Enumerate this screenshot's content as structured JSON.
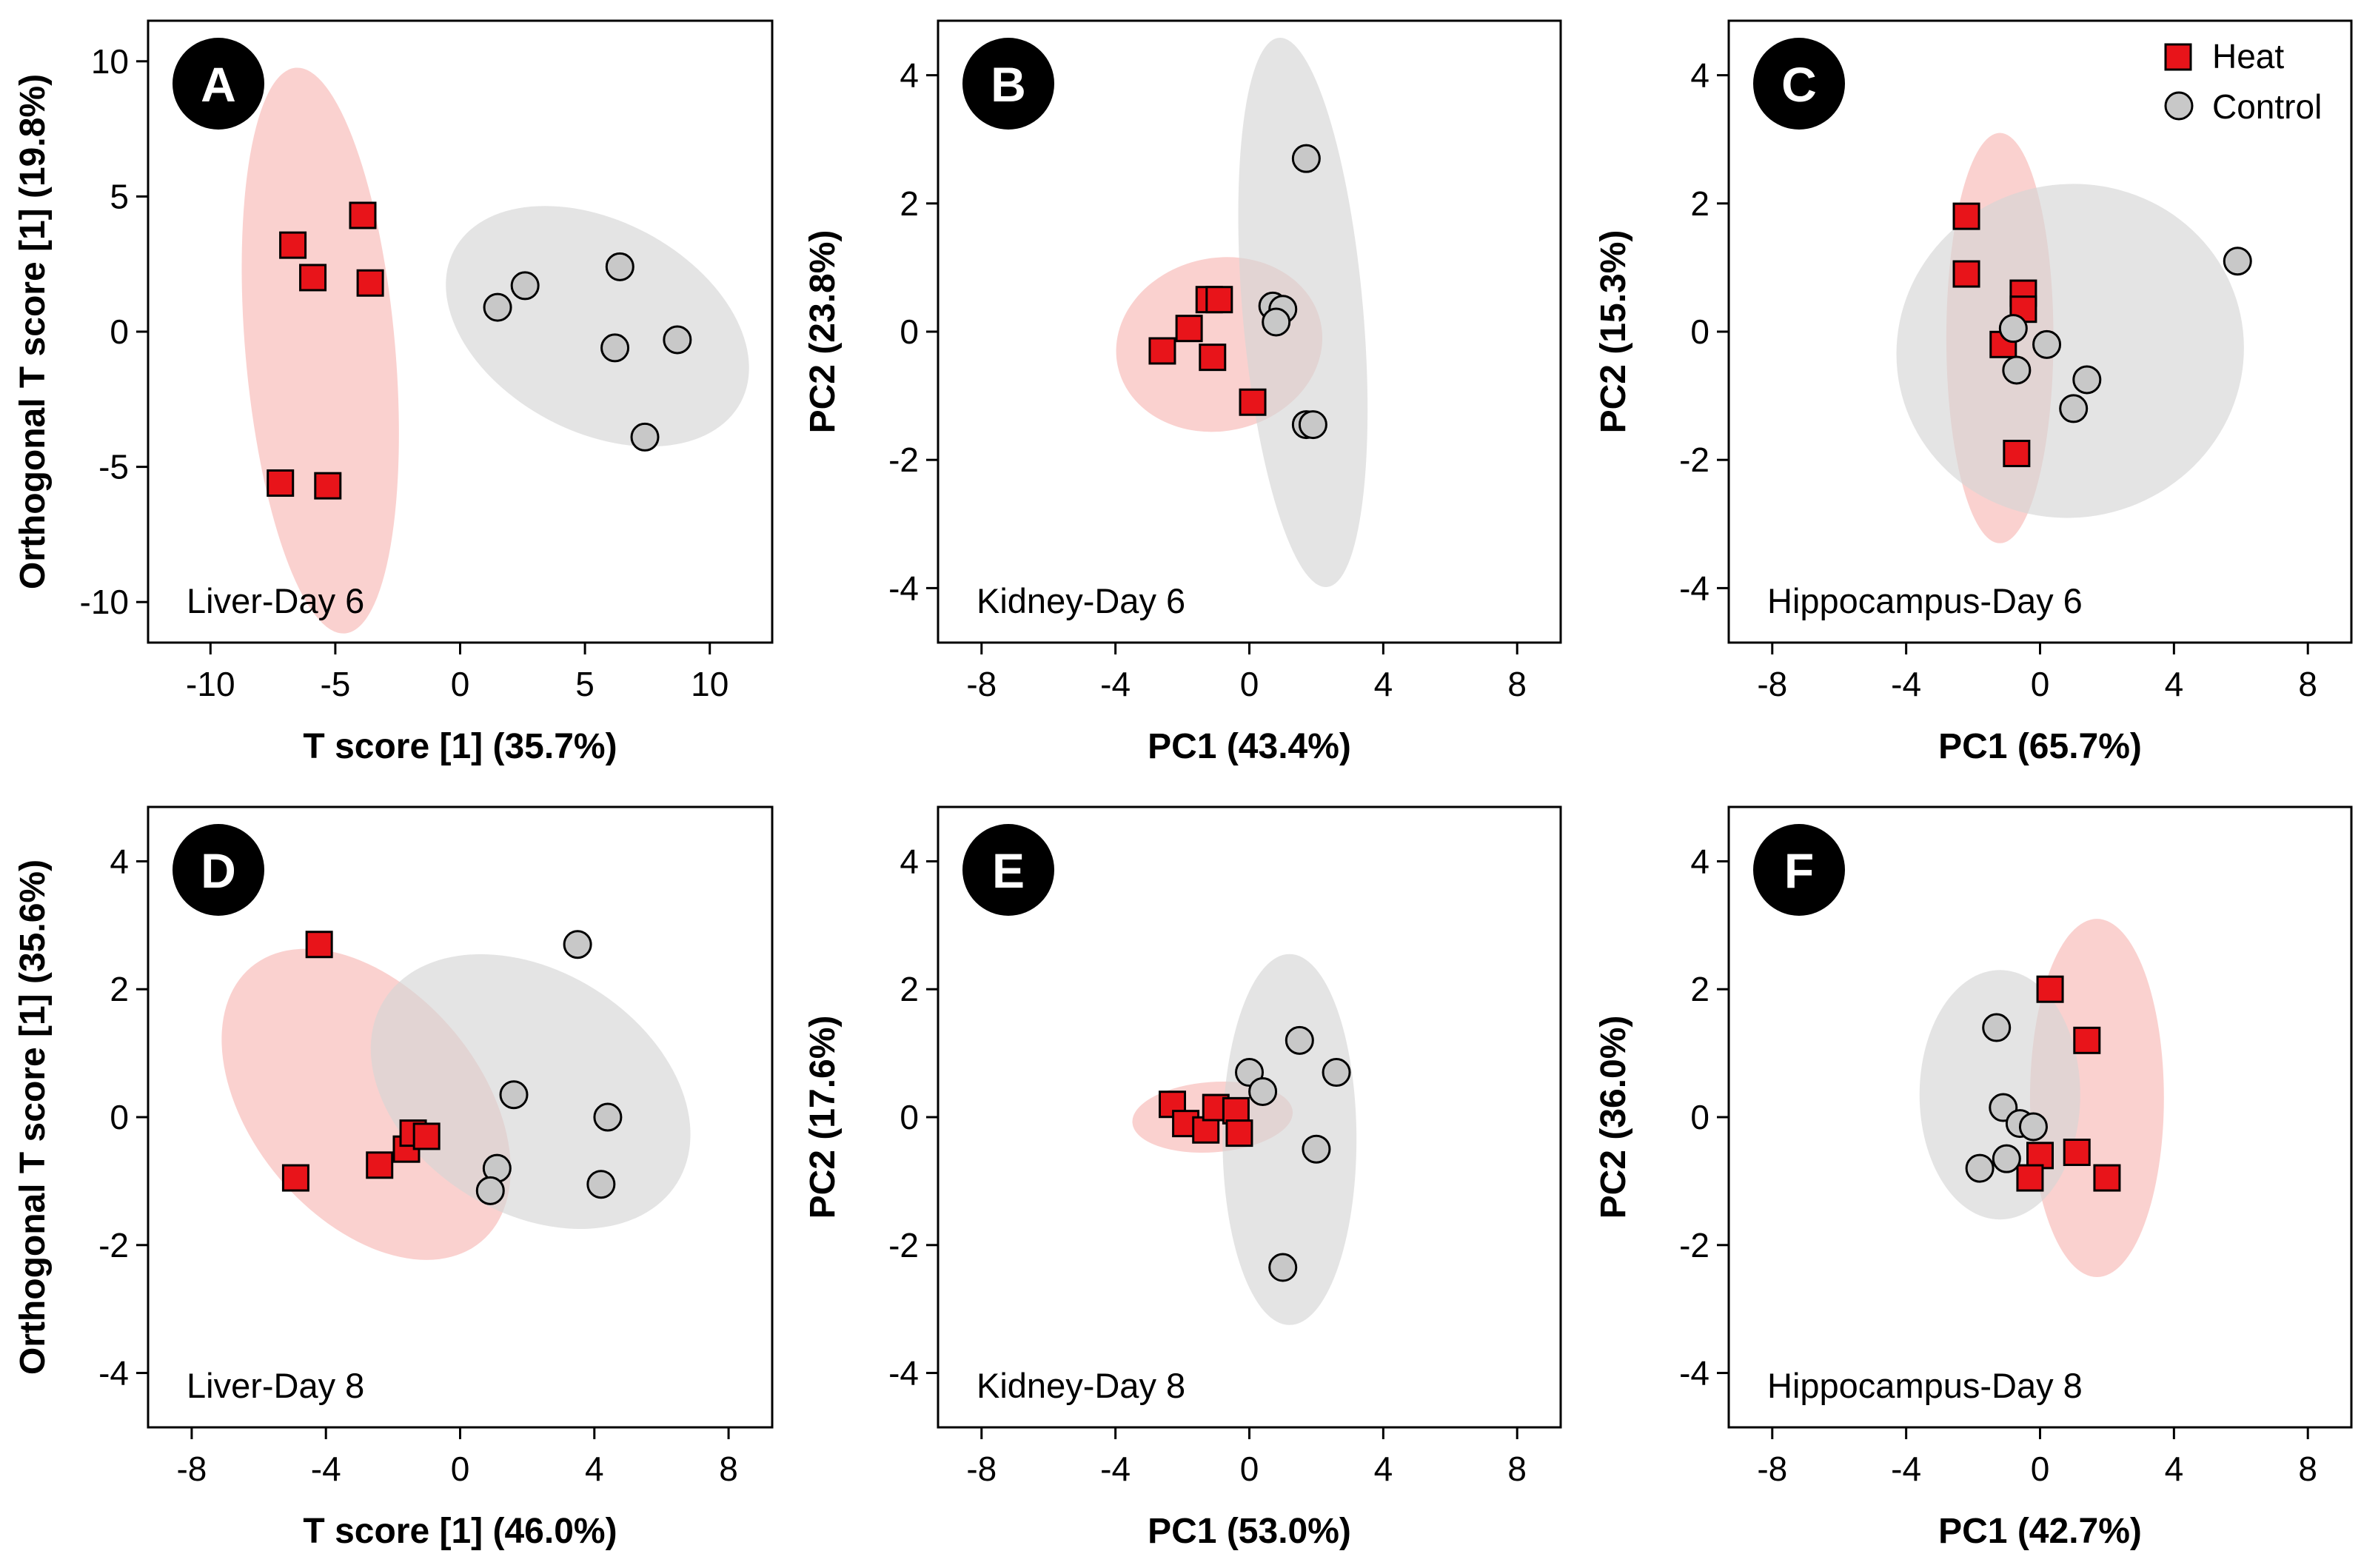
{
  "colors": {
    "heat_marker": "#e8141a",
    "heat_ellipse": "#f7b8b6",
    "control_marker": "#c8c8c8",
    "control_ellipse": "#d6d6d6",
    "badge": "#000000",
    "axis": "#000000"
  },
  "legend": {
    "heat_label": "Heat",
    "control_label": "Control",
    "heat_icon": "red-square-marker",
    "control_icon": "grey-circle-marker"
  },
  "chart_data": [
    {
      "panel": "A",
      "type": "scatter",
      "caption": "Liver-Day 6",
      "xlabel": "T score [1] (35.7%)",
      "ylabel": "Orthogonal T score [1] (19.8%)",
      "xlim": [
        -12.5,
        12.5
      ],
      "ylim": [
        -11.5,
        11.5
      ],
      "xticks": [
        -10,
        -5,
        0,
        5,
        10
      ],
      "yticks": [
        -10,
        -5,
        0,
        5,
        10
      ],
      "xtick_labels": [
        "-10",
        "-5",
        "0",
        "5",
        "10"
      ],
      "ytick_labels": [
        "-10",
        "-5",
        "0",
        "5",
        "10"
      ],
      "series": [
        {
          "name": "Heat",
          "points": [
            [
              -6.7,
              3.2
            ],
            [
              -5.9,
              2.0
            ],
            [
              -3.9,
              4.3
            ],
            [
              -3.6,
              1.8
            ],
            [
              -7.2,
              -5.6
            ],
            [
              -5.3,
              -5.7
            ]
          ]
        },
        {
          "name": "Control",
          "points": [
            [
              1.5,
              0.9
            ],
            [
              2.6,
              1.7
            ],
            [
              6.4,
              2.4
            ],
            [
              6.2,
              -0.6
            ],
            [
              8.7,
              -0.3
            ],
            [
              7.4,
              -3.9
            ]
          ]
        }
      ],
      "ellipses": [
        {
          "group": "Heat",
          "cx": -5.6,
          "cy": -0.7,
          "rx": 3.0,
          "ry": 10.5,
          "angle": -5
        },
        {
          "group": "Control",
          "cx": 5.5,
          "cy": 0.2,
          "rx": 6.5,
          "ry": 3.9,
          "angle": 28
        }
      ]
    },
    {
      "panel": "B",
      "type": "scatter",
      "caption": "Kidney-Day 6",
      "xlabel": "PC1 (43.4%)",
      "ylabel": "PC2 (23.8%)",
      "xlim": [
        -9.3,
        9.3
      ],
      "ylim": [
        -4.85,
        4.85
      ],
      "xticks": [
        -8,
        -4,
        0,
        4,
        8
      ],
      "yticks": [
        -4,
        -2,
        0,
        2,
        4
      ],
      "xtick_labels": [
        "-8",
        "-4",
        "0",
        "4",
        "8"
      ],
      "ytick_labels": [
        "-4",
        "-2",
        "0",
        "2",
        "4"
      ],
      "series": [
        {
          "name": "Heat",
          "points": [
            [
              -2.6,
              -0.3
            ],
            [
              -1.8,
              0.05
            ],
            [
              -1.2,
              0.5
            ],
            [
              -0.9,
              0.5
            ],
            [
              -1.1,
              -0.4
            ],
            [
              0.1,
              -1.1
            ]
          ]
        },
        {
          "name": "Control",
          "points": [
            [
              1.7,
              2.7
            ],
            [
              0.7,
              0.4
            ],
            [
              1.0,
              0.35
            ],
            [
              0.8,
              0.15
            ],
            [
              1.7,
              -1.45
            ],
            [
              1.9,
              -1.45
            ]
          ]
        }
      ],
      "ellipses": [
        {
          "group": "Heat",
          "cx": -0.9,
          "cy": -0.2,
          "rx": 3.1,
          "ry": 1.35,
          "angle": -12
        },
        {
          "group": "Control",
          "cx": 1.6,
          "cy": 0.3,
          "rx": 1.8,
          "ry": 4.3,
          "angle": -5
        }
      ]
    },
    {
      "panel": "C",
      "type": "scatter",
      "caption": "Hippocampus-Day 6",
      "xlabel": "PC1 (65.7%)",
      "ylabel": "PC2 (15.3%)",
      "xlim": [
        -9.3,
        9.3
      ],
      "ylim": [
        -4.85,
        4.85
      ],
      "xticks": [
        -8,
        -4,
        0,
        4,
        8
      ],
      "yticks": [
        -4,
        -2,
        0,
        2,
        4
      ],
      "xtick_labels": [
        "-8",
        "-4",
        "0",
        "4",
        "8"
      ],
      "ytick_labels": [
        "-4",
        "-2",
        "0",
        "2",
        "4"
      ],
      "series": [
        {
          "name": "Heat",
          "points": [
            [
              -2.2,
              1.8
            ],
            [
              -2.2,
              0.9
            ],
            [
              -0.5,
              0.6
            ],
            [
              -0.5,
              0.35
            ],
            [
              -1.1,
              -0.2
            ],
            [
              -0.7,
              -1.9
            ]
          ]
        },
        {
          "name": "Control",
          "points": [
            [
              5.9,
              1.1
            ],
            [
              -0.8,
              0.05
            ],
            [
              0.2,
              -0.2
            ],
            [
              -0.7,
              -0.6
            ],
            [
              1.4,
              -0.75
            ],
            [
              1.0,
              -1.2
            ]
          ]
        }
      ],
      "ellipses": [
        {
          "group": "Heat",
          "cx": -1.2,
          "cy": -0.1,
          "rx": 1.6,
          "ry": 3.2,
          "angle": 0
        },
        {
          "group": "Control",
          "cx": 0.9,
          "cy": -0.3,
          "rx": 5.2,
          "ry": 2.6,
          "angle": -12
        }
      ]
    },
    {
      "panel": "D",
      "type": "scatter",
      "caption": "Liver-Day 8",
      "xlabel": "T score [1] (46.0%)",
      "ylabel": "Orthogonal T score [1] (35.6%)",
      "xlim": [
        -9.3,
        9.3
      ],
      "ylim": [
        -4.85,
        4.85
      ],
      "xticks": [
        -8,
        -4,
        0,
        4,
        8
      ],
      "yticks": [
        -4,
        -2,
        0,
        2,
        4
      ],
      "xtick_labels": [
        "-8",
        "-4",
        "0",
        "4",
        "8"
      ],
      "ytick_labels": [
        "-4",
        "-2",
        "0",
        "2",
        "4"
      ],
      "series": [
        {
          "name": "Heat",
          "points": [
            [
              -4.2,
              2.7
            ],
            [
              -4.9,
              -0.95
            ],
            [
              -2.4,
              -0.75
            ],
            [
              -1.6,
              -0.5
            ],
            [
              -1.4,
              -0.25
            ],
            [
              -1.0,
              -0.3
            ]
          ]
        },
        {
          "name": "Control",
          "points": [
            [
              3.5,
              2.7
            ],
            [
              1.6,
              0.35
            ],
            [
              4.4,
              0.0
            ],
            [
              1.1,
              -0.8
            ],
            [
              0.9,
              -1.15
            ],
            [
              4.2,
              -1.05
            ]
          ]
        }
      ],
      "ellipses": [
        {
          "group": "Heat",
          "cx": -2.8,
          "cy": 0.2,
          "rx": 3.4,
          "ry": 2.8,
          "angle": -40
        },
        {
          "group": "Control",
          "cx": 2.1,
          "cy": 0.4,
          "rx": 3.6,
          "ry": 2.7,
          "angle": -58
        }
      ]
    },
    {
      "panel": "E",
      "type": "scatter",
      "caption": "Kidney-Day 8",
      "xlabel": "PC1 (53.0%)",
      "ylabel": "PC2 (17.6%)",
      "xlim": [
        -9.3,
        9.3
      ],
      "ylim": [
        -4.85,
        4.85
      ],
      "xticks": [
        -8,
        -4,
        0,
        4,
        8
      ],
      "yticks": [
        -4,
        -2,
        0,
        2,
        4
      ],
      "xtick_labels": [
        "-8",
        "-4",
        "0",
        "4",
        "8"
      ],
      "ytick_labels": [
        "-4",
        "-2",
        "0",
        "2",
        "4"
      ],
      "series": [
        {
          "name": "Heat",
          "points": [
            [
              -2.3,
              0.2
            ],
            [
              -1.9,
              -0.1
            ],
            [
              -1.3,
              -0.2
            ],
            [
              -1.0,
              0.15
            ],
            [
              -0.4,
              0.1
            ],
            [
              -0.3,
              -0.25
            ]
          ]
        },
        {
          "name": "Control",
          "points": [
            [
              1.5,
              1.2
            ],
            [
              2.6,
              0.7
            ],
            [
              0.0,
              0.7
            ],
            [
              0.4,
              0.4
            ],
            [
              2.0,
              -0.5
            ],
            [
              1.0,
              -2.35
            ]
          ]
        }
      ],
      "ellipses": [
        {
          "group": "Heat",
          "cx": -1.1,
          "cy": 0.0,
          "rx": 2.4,
          "ry": 0.55,
          "angle": -4
        },
        {
          "group": "Control",
          "cx": 1.2,
          "cy": -0.35,
          "rx": 2.0,
          "ry": 2.9,
          "angle": 0
        }
      ]
    },
    {
      "panel": "F",
      "type": "scatter",
      "caption": "Hippocampus-Day 8",
      "xlabel": "PC1 (42.7%)",
      "ylabel": "PC2 (36.0%)",
      "xlim": [
        -9.3,
        9.3
      ],
      "ylim": [
        -4.85,
        4.85
      ],
      "xticks": [
        -8,
        -4,
        0,
        4,
        8
      ],
      "yticks": [
        -4,
        -2,
        0,
        2,
        4
      ],
      "xtick_labels": [
        "-8",
        "-4",
        "0",
        "4",
        "8"
      ],
      "ytick_labels": [
        "-4",
        "-2",
        "0",
        "2",
        "4"
      ],
      "series": [
        {
          "name": "Heat",
          "points": [
            [
              0.3,
              2.0
            ],
            [
              1.4,
              1.2
            ],
            [
              1.1,
              -0.55
            ],
            [
              2.0,
              -0.95
            ],
            [
              0.0,
              -0.6
            ],
            [
              -0.3,
              -0.95
            ]
          ]
        },
        {
          "name": "Control",
          "points": [
            [
              -1.3,
              1.4
            ],
            [
              -1.1,
              0.15
            ],
            [
              -0.6,
              -0.1
            ],
            [
              -0.2,
              -0.15
            ],
            [
              -1.0,
              -0.65
            ],
            [
              -1.8,
              -0.8
            ]
          ]
        }
      ],
      "ellipses": [
        {
          "group": "Heat",
          "cx": 1.7,
          "cy": 0.3,
          "rx": 2.0,
          "ry": 2.8,
          "angle": 0
        },
        {
          "group": "Control",
          "cx": -1.2,
          "cy": 0.35,
          "rx": 2.4,
          "ry": 1.95,
          "angle": 0
        }
      ]
    }
  ]
}
